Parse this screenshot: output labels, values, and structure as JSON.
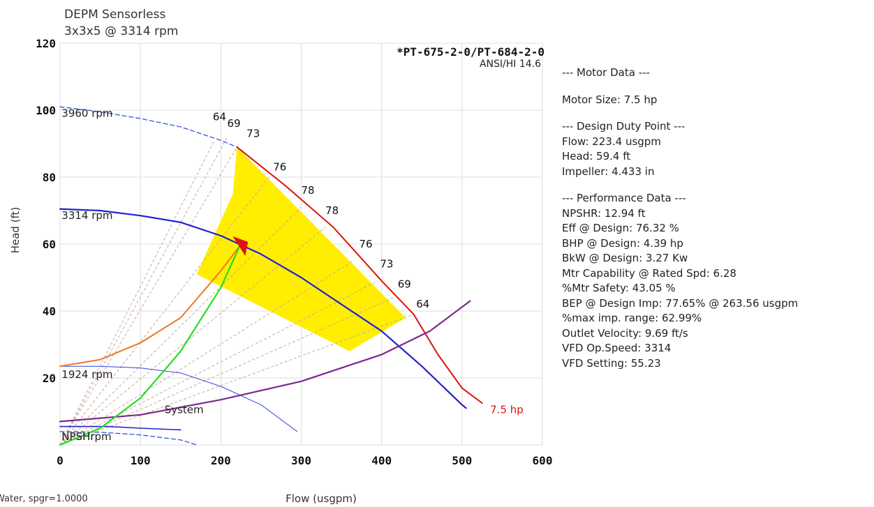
{
  "chart_data": {
    "type": "line",
    "title": "DEPM Sensorless",
    "subtitle": "3x3x5 @ 3314 rpm",
    "model_label": "*PT-675-2-0/PT-684-2-0",
    "standard_label": "ANSI/HI 14.6",
    "xlabel": "Flow (usgpm)",
    "ylabel": "Head (ft)",
    "xlim": [
      0,
      600
    ],
    "ylim": [
      0,
      120
    ],
    "x_ticks": [
      "0",
      "100",
      "200",
      "300",
      "400",
      "500",
      "600"
    ],
    "y_ticks": [
      "20",
      "40",
      "60",
      "80",
      "100",
      "120"
    ],
    "grid": true,
    "fluid_note": "Water, spgr=1.0000",
    "operating_region": [
      [
        220,
        89
      ],
      [
        430,
        38
      ],
      [
        360,
        28
      ],
      [
        170,
        51
      ],
      [
        215,
        75
      ]
    ],
    "series": [
      {
        "name": "3960 rpm",
        "color": "#3355dd",
        "dash": true,
        "width": 1.3,
        "x": [
          0,
          50,
          100,
          150,
          200,
          220
        ],
        "y": [
          101,
          99.5,
          97.5,
          95,
          91,
          89
        ]
      },
      {
        "name": "3314 rpm",
        "color": "#2222cc",
        "dash": false,
        "width": 2.2,
        "x": [
          0,
          50,
          100,
          150,
          200,
          250,
          300,
          350,
          400,
          450,
          500,
          505
        ],
        "y": [
          70.5,
          70,
          68.5,
          66.5,
          62.5,
          57,
          50,
          42,
          34,
          23.5,
          12,
          11
        ]
      },
      {
        "name": "1924 rpm",
        "color": "#3344dd",
        "dash": false,
        "width": 1,
        "x": [
          0,
          50,
          100,
          150,
          200,
          250,
          295
        ],
        "y": [
          23.5,
          23.5,
          23,
          21.5,
          17.5,
          12,
          4
        ]
      },
      {
        "name": "",
        "color": "#3355dd",
        "dash": true,
        "width": 1.3,
        "x": [
          0,
          50,
          100,
          150,
          170
        ],
        "y": [
          4,
          3.8,
          3,
          1.5,
          0
        ]
      },
      {
        "name": "7.5 hp",
        "color": "#dd1111",
        "dash": false,
        "width": 2,
        "x": [
          220,
          280,
          340,
          400,
          440,
          470,
          500,
          525
        ],
        "y": [
          89,
          77.5,
          65,
          49,
          39,
          27,
          17,
          12.5
        ]
      },
      {
        "name": "System",
        "color": "#7a2a8a",
        "dash": false,
        "width": 2.2,
        "x": [
          0,
          100,
          200,
          300,
          400,
          460,
          510
        ],
        "y": [
          7,
          9,
          13.5,
          19,
          27,
          34,
          43
        ]
      },
      {
        "name": "NPSHr",
        "color": "#2222cc",
        "dash": false,
        "width": 1.6,
        "x": [
          0,
          60,
          100,
          150
        ],
        "y": [
          5.5,
          5.5,
          5,
          4.5
        ]
      },
      {
        "name": "",
        "color": "#ee7722",
        "dash": false,
        "width": 2,
        "x": [
          0,
          50,
          100,
          150,
          200,
          223.4
        ],
        "y": [
          23.5,
          25.5,
          30.5,
          38,
          52,
          59.4
        ]
      },
      {
        "name": "",
        "color": "#22dd22",
        "dash": false,
        "width": 2.2,
        "x": [
          0,
          50,
          100,
          150,
          200,
          223.4
        ],
        "y": [
          0,
          5,
          14,
          28,
          47,
          59.4
        ]
      }
    ],
    "efficiency_labels": [
      {
        "text": "64",
        "x": 190,
        "y": 97
      },
      {
        "text": "69",
        "x": 208,
        "y": 95
      },
      {
        "text": "73",
        "x": 232,
        "y": 92
      },
      {
        "text": "76",
        "x": 265,
        "y": 82
      },
      {
        "text": "78",
        "x": 300,
        "y": 75
      },
      {
        "text": "78",
        "x": 330,
        "y": 69
      },
      {
        "text": "76",
        "x": 372,
        "y": 59
      },
      {
        "text": "73",
        "x": 398,
        "y": 53
      },
      {
        "text": "69",
        "x": 420,
        "y": 47
      },
      {
        "text": "64",
        "x": 443,
        "y": 41
      }
    ],
    "iso_efficiency_lines": [
      {
        "x": [
          0,
          192
        ],
        "y": [
          0,
          91
        ]
      },
      {
        "x": [
          0,
          208
        ],
        "y": [
          0,
          92
        ]
      },
      {
        "x": [
          0,
          220
        ],
        "y": [
          0,
          89
        ]
      },
      {
        "x": [
          0,
          260
        ],
        "y": [
          0,
          80
        ]
      },
      {
        "x": [
          0,
          300
        ],
        "y": [
          0,
          71
        ]
      },
      {
        "x": [
          0,
          330
        ],
        "y": [
          0,
          65
        ]
      },
      {
        "x": [
          0,
          365
        ],
        "y": [
          0,
          55
        ]
      },
      {
        "x": [
          0,
          395
        ],
        "y": [
          0,
          49
        ]
      },
      {
        "x": [
          0,
          415
        ],
        "y": [
          0,
          44
        ]
      },
      {
        "x": [
          0,
          440
        ],
        "y": [
          0,
          39
        ]
      }
    ],
    "curve_labels": [
      {
        "text": "3960 rpm",
        "x": 2,
        "y": 98
      },
      {
        "text": "3314 rpm",
        "x": 2,
        "y": 67.5
      },
      {
        "text": "1924 rpm",
        "x": 2,
        "y": 20
      },
      {
        "text": "NPSHrpm",
        "x": 2,
        "y": 1.5
      },
      {
        "text": "NPSHr",
        "x": 2,
        "y": 1.5
      },
      {
        "text": "System",
        "x": 130,
        "y": 9.5
      },
      {
        "text": "7.5 hp",
        "x": 535,
        "y": 9.5
      }
    ],
    "duty_point": {
      "x": 223.4,
      "y": 59.4,
      "color": "#dd1111"
    }
  },
  "info_panel": {
    "motor_header": "--- Motor Data ---",
    "motor_size": "Motor Size: 7.5 hp",
    "duty_header": "--- Design Duty Point ---",
    "flow": "Flow: 223.4 usgpm",
    "head": "Head: 59.4 ft",
    "impeller": "Impeller: 4.433 in",
    "perf_header": "--- Performance Data ---",
    "npshr": "NPSHR: 12.94 ft",
    "eff_design": "Eff @ Design: 76.32 %",
    "bhp_design": "BHP @ Design: 4.39 hp",
    "bkw_design": "BkW @ Design: 3.27 Kw",
    "mtr_capability": "Mtr Capability @ Rated Spd: 6.28",
    "mtr_safety": "%Mtr Safety: 43.05 %",
    "bep": "BEP @ Design Imp: 77.65% @ 263.56 usgpm",
    "max_imp_range": "%max imp. range: 62.99%",
    "outlet_velocity": "Outlet Velocity: 9.69 ft/s",
    "vfd_speed": "VFD Op.Speed: 3314",
    "vfd_setting": "VFD Setting: 55.23"
  }
}
